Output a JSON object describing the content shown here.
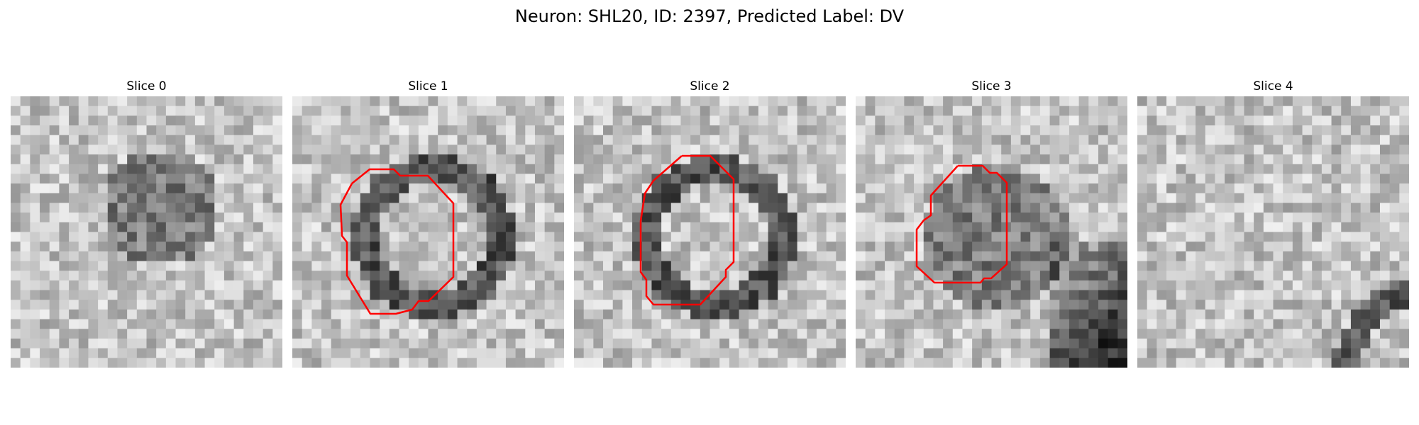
{
  "figure": {
    "title": "Neuron: SHL20, ID: 2397, Predicted Label: DV"
  },
  "panels": [
    {
      "title": "Slice 0",
      "seed": 11,
      "has_contour": false,
      "feature": "blob"
    },
    {
      "title": "Slice 1",
      "seed": 23,
      "has_contour": true,
      "feature": "ring"
    },
    {
      "title": "Slice 2",
      "seed": 37,
      "has_contour": true,
      "feature": "ring"
    },
    {
      "title": "Slice 3",
      "seed": 41,
      "has_contour": true,
      "feature": "dark-disc"
    },
    {
      "title": "Slice 4",
      "seed": 53,
      "has_contour": false,
      "feature": "arc"
    }
  ],
  "colors": {
    "contour": "#ff0000",
    "colormap": "grayscale"
  }
}
